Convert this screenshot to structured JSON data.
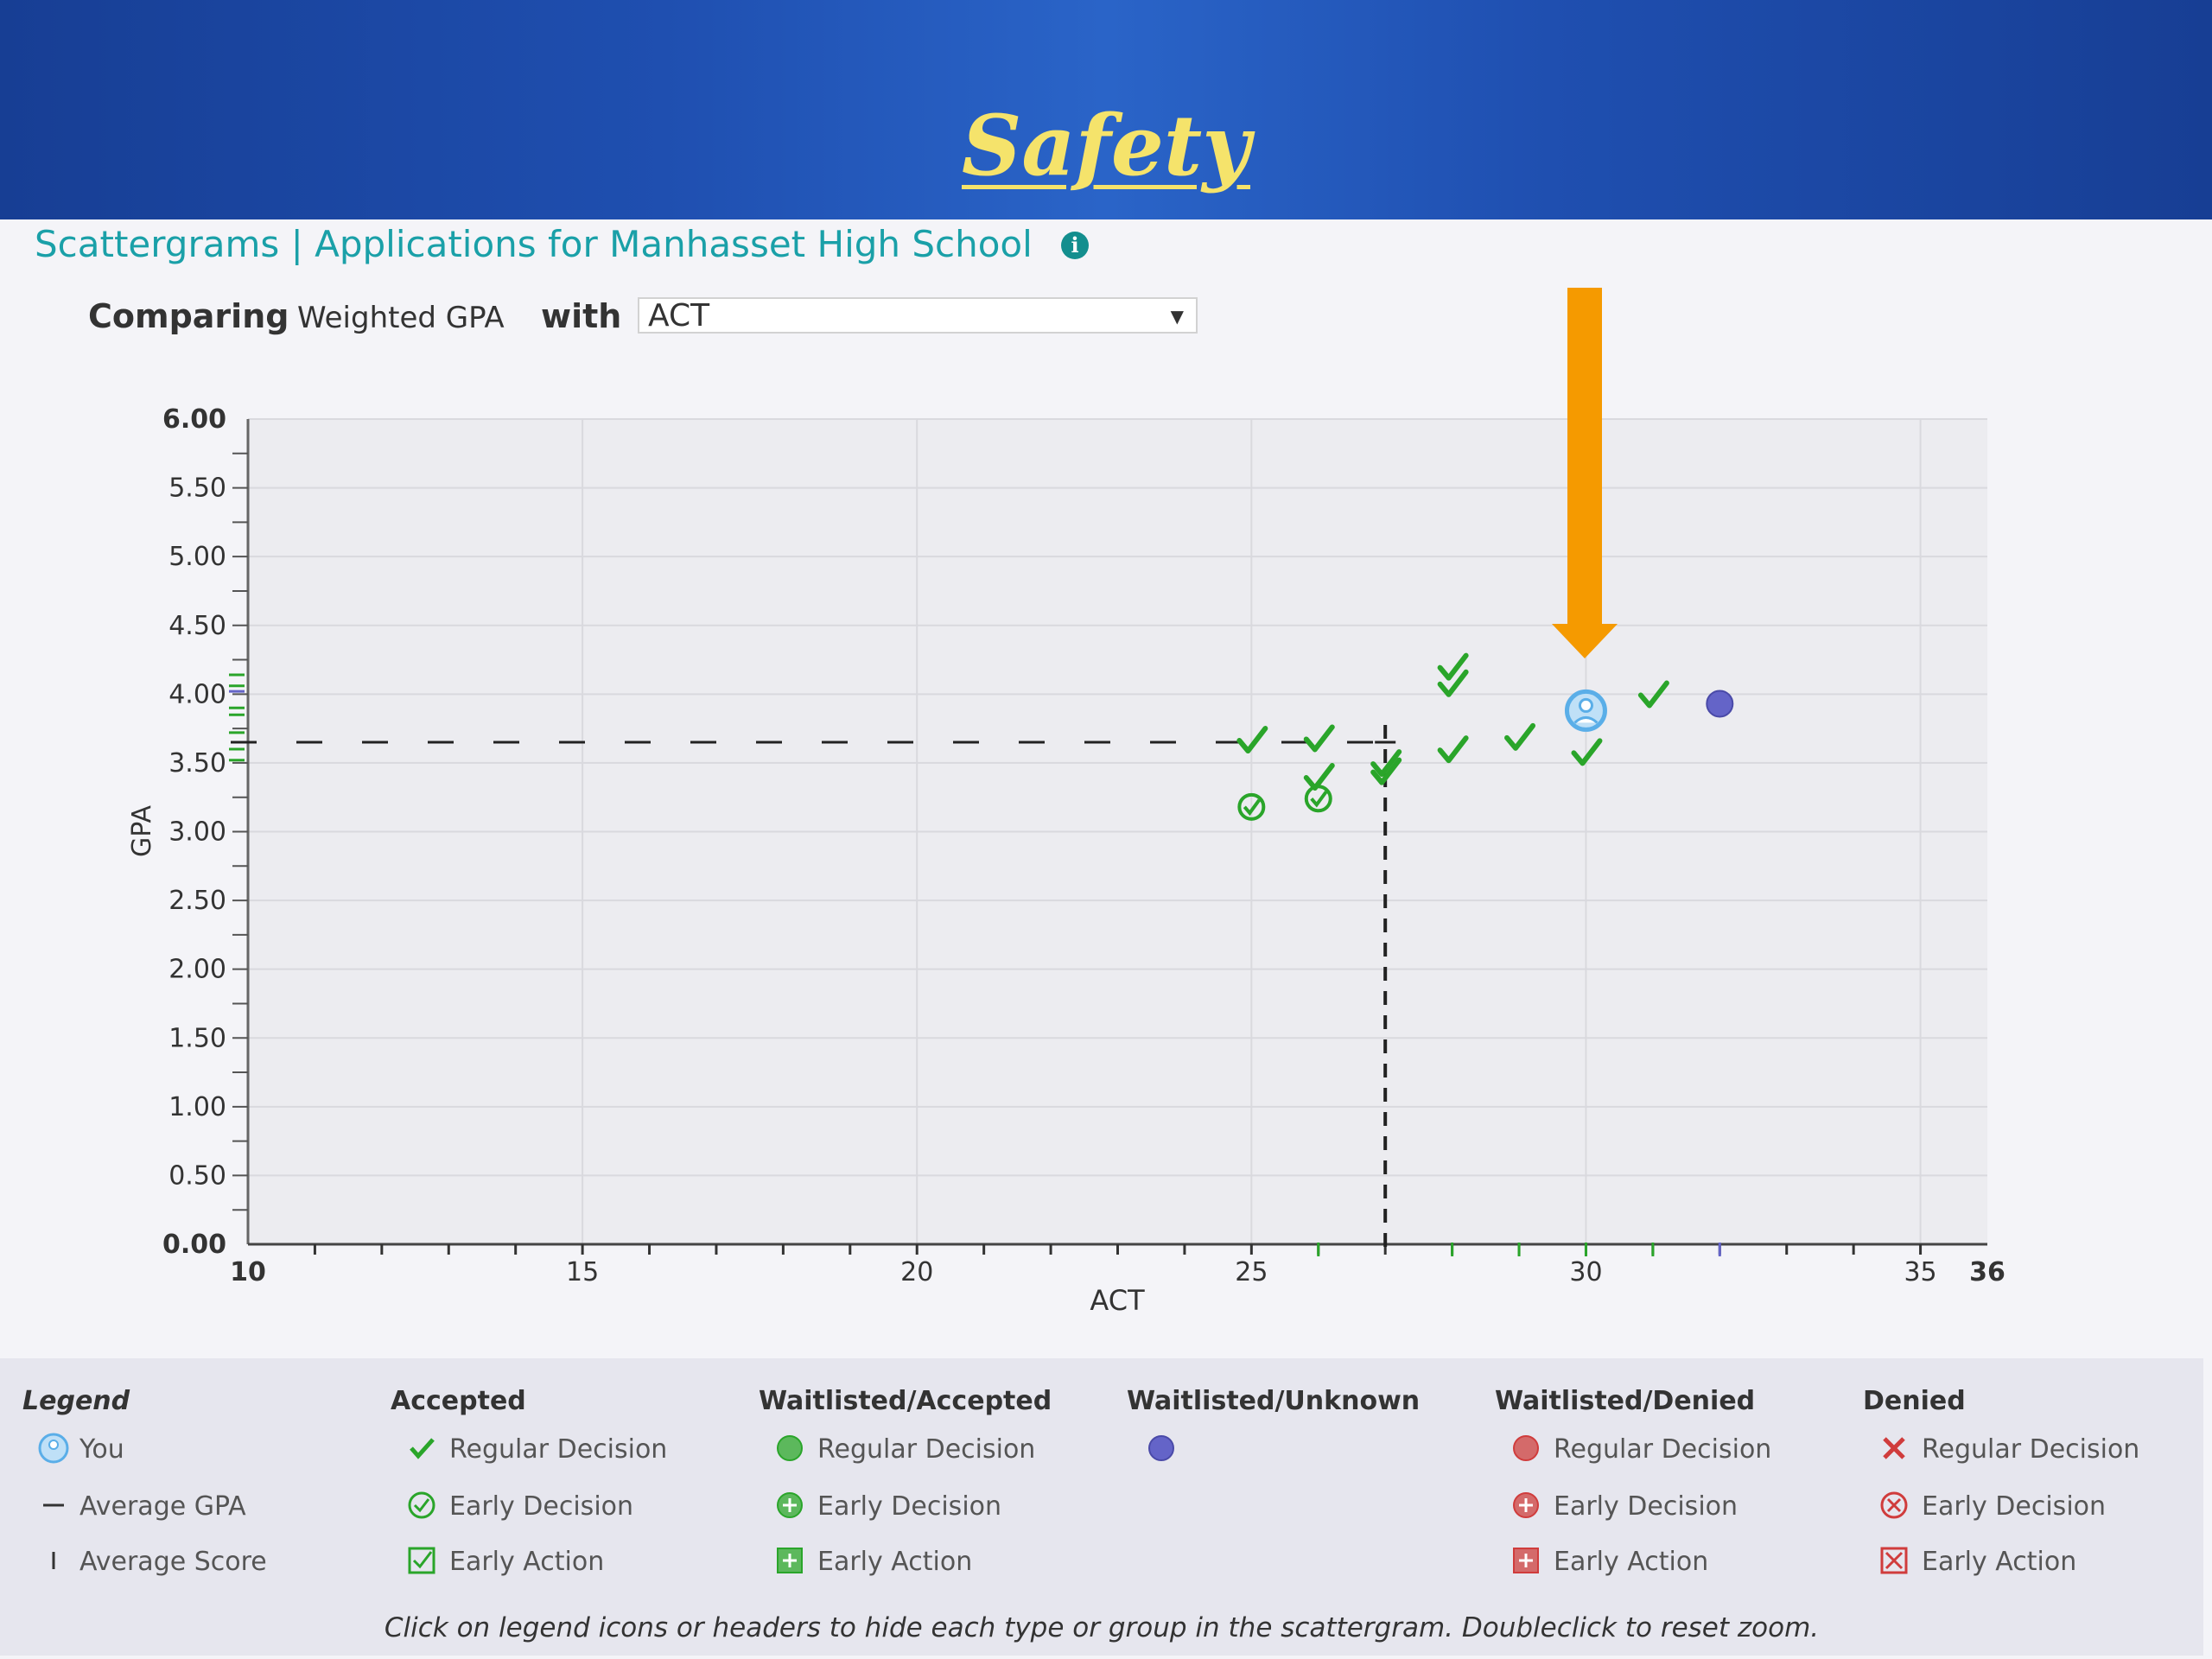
{
  "slide": {
    "title": "Safety"
  },
  "app": {
    "title": "Scattergrams | Applications for Manhasset High School",
    "comparing_label": "Comparing",
    "y_metric": "Weighted GPA",
    "with_label": "with",
    "x_metric": "ACT",
    "info_glyph": "i"
  },
  "colors": {
    "banner": "#1f4fb0",
    "title": "#f5e36b",
    "teal": "#1aa0a8",
    "accepted": "#2aa52a",
    "waitlisted_unknown": "#6464c8",
    "denied": "#d03c3c",
    "you": "#5aaee8",
    "arrow": "#f59a00"
  },
  "chart_data": {
    "type": "scatter",
    "xlabel": "ACT",
    "ylabel": "GPA",
    "xlim": [
      10,
      36
    ],
    "ylim": [
      0,
      6
    ],
    "x_ticks": [
      "10",
      "15",
      "20",
      "25",
      "30",
      "35",
      "36"
    ],
    "y_ticks": [
      "0.00",
      "0.50",
      "1.00",
      "1.50",
      "2.00",
      "2.50",
      "3.00",
      "3.50",
      "4.00",
      "4.50",
      "5.00",
      "5.50",
      "6.00"
    ],
    "grid": true,
    "average_gpa": 3.65,
    "average_score": 27,
    "you": {
      "x": 30,
      "y": 3.88
    },
    "series": [
      {
        "name": "Accepted - Regular Decision",
        "points": [
          [
            25,
            3.65
          ],
          [
            26,
            3.66
          ],
          [
            26,
            3.38
          ],
          [
            27,
            3.48
          ],
          [
            27,
            3.42
          ],
          [
            28,
            4.18
          ],
          [
            28,
            4.06
          ],
          [
            28,
            3.58
          ],
          [
            29,
            3.67
          ],
          [
            30,
            3.56
          ],
          [
            31,
            3.98
          ]
        ]
      },
      {
        "name": "Accepted - Early Decision",
        "points": [
          [
            25,
            3.18
          ],
          [
            26,
            3.24
          ]
        ]
      },
      {
        "name": "Waitlisted/Unknown",
        "points": [
          [
            32,
            3.93
          ]
        ]
      }
    ]
  },
  "legend": {
    "title": "Legend",
    "you": "You",
    "avg_gpa": "Average GPA",
    "avg_score": "Average Score",
    "groups": [
      {
        "header": "Accepted",
        "items": [
          "Regular Decision",
          "Early Decision",
          "Early Action"
        ]
      },
      {
        "header": "Waitlisted/Accepted",
        "items": [
          "Regular Decision",
          "Early Decision",
          "Early Action"
        ]
      },
      {
        "header": "Waitlisted/Unknown",
        "items": []
      },
      {
        "header": "Waitlisted/Denied",
        "items": [
          "Regular Decision",
          "Early Decision",
          "Early Action"
        ]
      },
      {
        "header": "Denied",
        "items": [
          "Regular Decision",
          "Early Decision",
          "Early Action"
        ]
      }
    ],
    "note": "Click on legend icons or headers to hide each type or group in the scattergram. Doubleclick to reset zoom."
  }
}
